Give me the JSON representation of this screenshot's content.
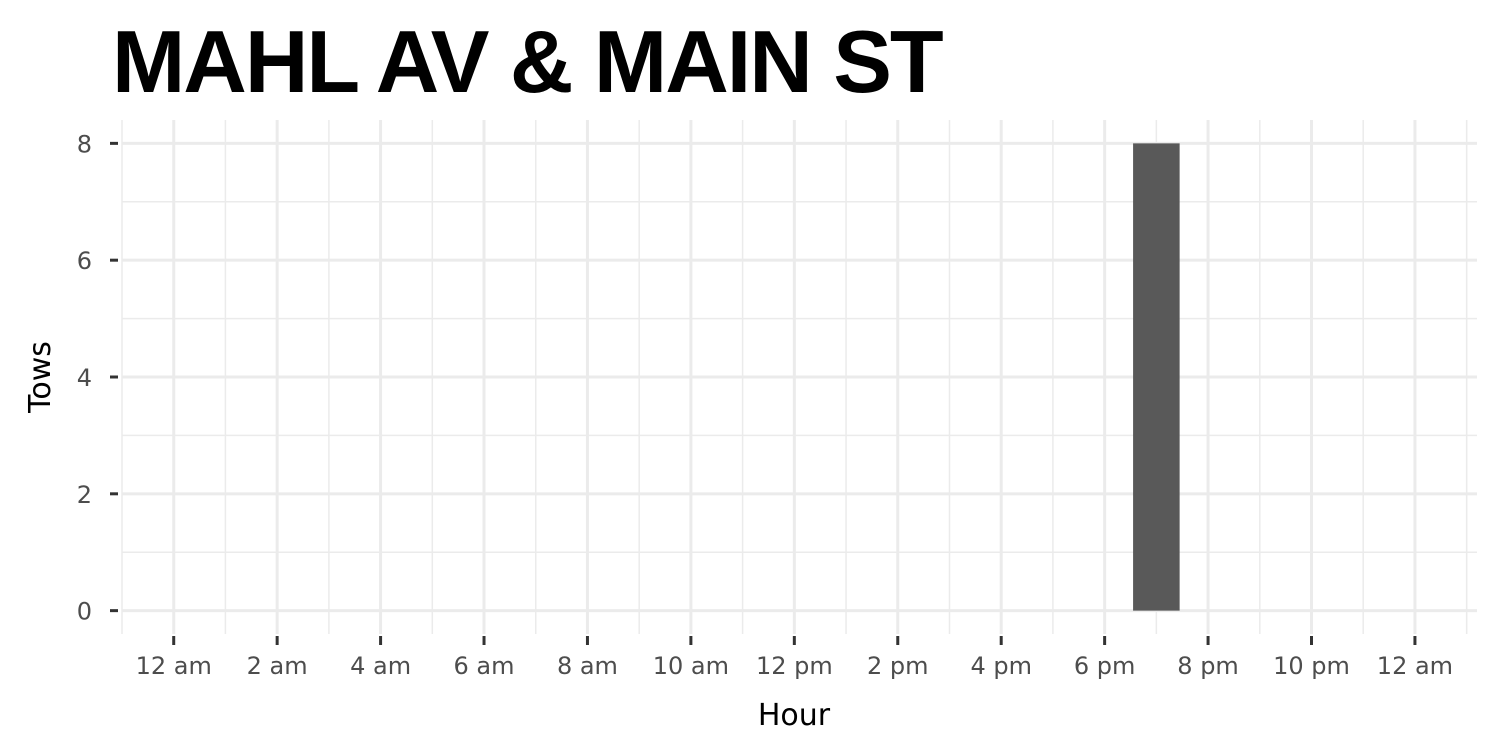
{
  "chart_data": {
    "type": "bar",
    "title": "MAHL AV & MAIN ST",
    "xlabel": "Hour",
    "ylabel": "Tows",
    "x_tick_labels": [
      "12 am",
      "2 am",
      "4 am",
      "6 am",
      "8 am",
      "10 am",
      "12 pm",
      "2 pm",
      "4 pm",
      "6 pm",
      "8 pm",
      "10 pm",
      "12 am"
    ],
    "x_tick_hours": [
      0,
      2,
      4,
      6,
      8,
      10,
      12,
      14,
      16,
      18,
      20,
      22,
      24
    ],
    "xlim": [
      -1,
      25.2
    ],
    "y_ticks": [
      0,
      2,
      4,
      6,
      8
    ],
    "ylim": [
      -0.4,
      8.4
    ],
    "bars": [
      {
        "hour": 19,
        "value": 8
      }
    ],
    "grid": true,
    "colors": {
      "bar": "#595959",
      "grid": "#ebebeb",
      "tick": "#333333"
    }
  }
}
